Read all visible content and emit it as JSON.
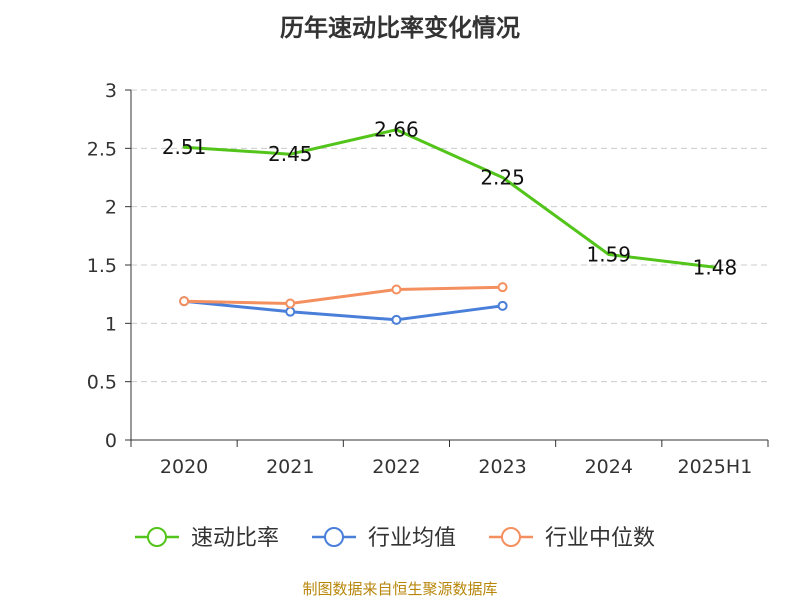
{
  "title": "历年速动比率变化情况",
  "source": "制图数据来自恒生聚源数据库",
  "chart_data": {
    "type": "line",
    "title": "历年速动比率变化情况",
    "categories": [
      "2020",
      "2021",
      "2022",
      "2023",
      "2024",
      "2025H1"
    ],
    "ylim": [
      0,
      3
    ],
    "yticks": [
      0,
      0.5,
      1,
      1.5,
      2,
      2.5,
      3
    ],
    "ytick_labels": [
      "0",
      "0.5",
      "1",
      "1.5",
      "2",
      "2.5",
      "3"
    ],
    "grid": true,
    "legend_position": "bottom",
    "series": [
      {
        "name": "速动比率",
        "color": "#52c41a",
        "values": [
          2.51,
          2.45,
          2.66,
          2.25,
          1.59,
          1.48
        ],
        "labels": [
          "2.51",
          "2.45",
          "2.66",
          "2.25",
          "1.59",
          "1.48"
        ],
        "show_labels": true,
        "show_markers": false
      },
      {
        "name": "行业均值",
        "color": "#4a7fd9",
        "values": [
          1.19,
          1.1,
          1.03,
          1.15,
          null,
          null
        ],
        "show_labels": false,
        "show_markers": true
      },
      {
        "name": "行业中位数",
        "color": "#f4905f",
        "values": [
          1.19,
          1.17,
          1.29,
          1.31,
          null,
          null
        ],
        "show_labels": false,
        "show_markers": true
      }
    ]
  }
}
